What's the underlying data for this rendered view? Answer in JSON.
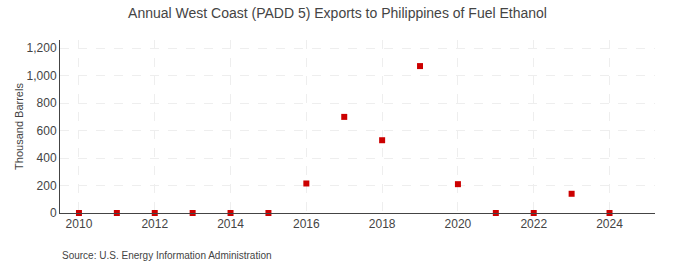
{
  "chart_data": {
    "type": "scatter",
    "title": "Annual West Coast (PADD 5) Exports to Philippines of Fuel Ethanol",
    "ylabel": "Thousand Barrels",
    "annotations": [
      "Source: U.S. Energy Information Administration"
    ],
    "x": [
      2010,
      2011,
      2012,
      2013,
      2014,
      2015,
      2016,
      2017,
      2018,
      2019,
      2020,
      2021,
      2022,
      2023,
      2024
    ],
    "values": [
      0,
      0,
      0,
      0,
      0,
      0,
      215,
      700,
      530,
      1070,
      210,
      0,
      0,
      140,
      0
    ],
    "color": "#cc0000",
    "marker": "square",
    "xlim": [
      2009.5,
      2025.2
    ],
    "xticks": [
      2010,
      2012,
      2014,
      2016,
      2018,
      2020,
      2022,
      2024
    ],
    "ylim": [
      0,
      1260
    ],
    "yticks": [
      0,
      200,
      400,
      600,
      800,
      {
        "value": 1000,
        "label": "1,000"
      },
      {
        "value": 1200,
        "label": "1,200"
      }
    ],
    "grid": true
  }
}
